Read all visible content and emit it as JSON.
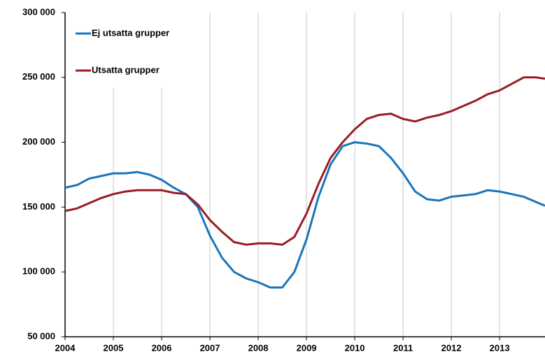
{
  "chart_data": {
    "type": "line",
    "x": [
      2004,
      2004.25,
      2004.5,
      2004.75,
      2005,
      2005.25,
      2005.5,
      2005.75,
      2006,
      2006.25,
      2006.5,
      2006.75,
      2007,
      2007.25,
      2007.5,
      2007.75,
      2008,
      2008.25,
      2008.5,
      2008.75,
      2009,
      2009.25,
      2009.5,
      2009.75,
      2010,
      2010.25,
      2010.5,
      2010.75,
      2011,
      2011.25,
      2011.5,
      2011.75,
      2012,
      2012.25,
      2012.5,
      2012.75,
      2013,
      2013.25,
      2013.5,
      2013.75,
      2013.94
    ],
    "series": [
      {
        "name": "Ej utsatta grupper",
        "color": "#1a75bc",
        "values": [
          165000,
          167000,
          172000,
          174000,
          176000,
          176000,
          177000,
          175000,
          171000,
          165000,
          160000,
          150000,
          128000,
          111000,
          100000,
          95000,
          92000,
          88000,
          88000,
          100000,
          125000,
          158000,
          183000,
          197000,
          200000,
          199000,
          197000,
          188000,
          176000,
          162000,
          156000,
          155000,
          158000,
          159000,
          160000,
          163000,
          162000,
          160000,
          158000,
          154000,
          151000
        ]
      },
      {
        "name": "Utsatta grupper",
        "color": "#9b1c24",
        "values": [
          147000,
          149000,
          153000,
          157000,
          160000,
          162000,
          163000,
          163000,
          163000,
          161000,
          160000,
          152000,
          140000,
          131000,
          123000,
          121000,
          122000,
          122000,
          121000,
          127000,
          145000,
          168000,
          188000,
          200000,
          210000,
          218000,
          221000,
          222000,
          218000,
          216000,
          219000,
          221000,
          224000,
          228000,
          232000,
          237000,
          240000,
          245000,
          250000,
          250000,
          249000
        ]
      }
    ],
    "xlim": [
      2004,
      2013.94
    ],
    "xticks": [
      2004,
      2005,
      2006,
      2007,
      2008,
      2009,
      2010,
      2011,
      2012,
      2013
    ],
    "ylim": [
      50000,
      300000
    ],
    "yticks": [
      {
        "value": 50000,
        "label": "50 000"
      },
      {
        "value": 100000,
        "label": "100 000"
      },
      {
        "value": 150000,
        "label": "150 000"
      },
      {
        "value": 200000,
        "label": "200 000"
      },
      {
        "value": 250000,
        "label": "250 000"
      },
      {
        "value": 300000,
        "label": "300 000"
      }
    ],
    "grid": "x",
    "legend": "top-left"
  }
}
